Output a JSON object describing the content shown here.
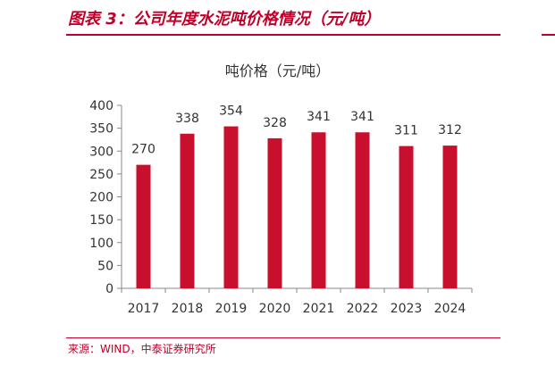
{
  "figure_title": "图表 3：公司年度水泥吨价格情况（元/吨）",
  "source": "来源：WIND，中泰证券研究所",
  "colors": {
    "accent": "#c0002a",
    "bar": "#c8102e",
    "axis": "#888888",
    "text": "#333333"
  },
  "chart_data": {
    "type": "bar",
    "title": "吨价格（元/吨）",
    "xlabel": "",
    "ylabel": "",
    "categories": [
      "2017",
      "2018",
      "2019",
      "2020",
      "2021",
      "2022",
      "2023",
      "2024"
    ],
    "values": [
      270,
      338,
      354,
      328,
      341,
      341,
      311,
      312
    ],
    "ylim": [
      0,
      400
    ],
    "yticks": [
      0,
      50,
      100,
      150,
      200,
      250,
      300,
      350,
      400
    ],
    "grid": false,
    "legend": "none"
  }
}
